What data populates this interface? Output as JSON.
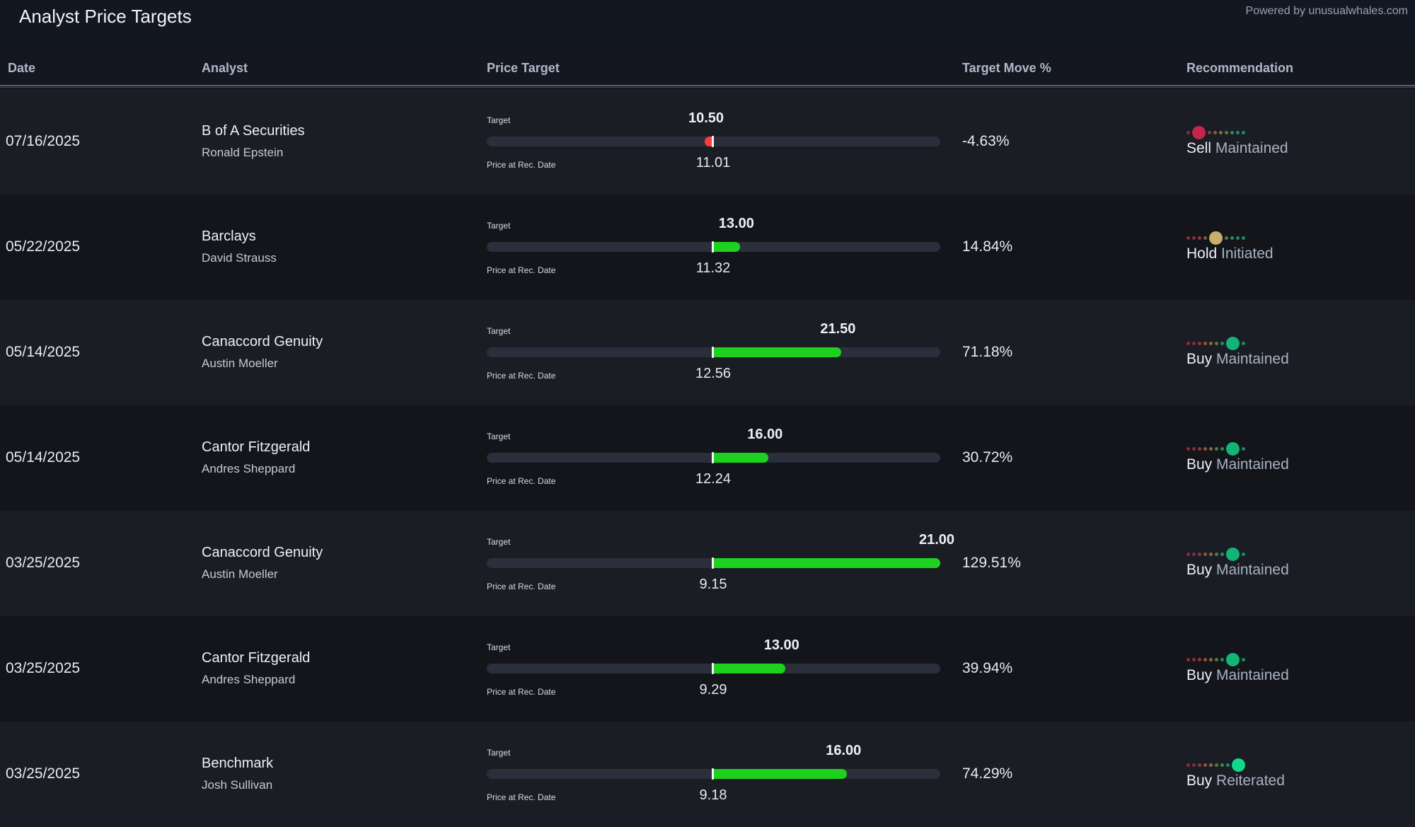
{
  "header": {
    "title": "Analyst Price Targets",
    "powered_by": "Powered by unusualwhales.com"
  },
  "columns": {
    "date": "Date",
    "analyst": "Analyst",
    "price_target": "Price Target",
    "target_move": "Target Move %",
    "recommendation": "Recommendation"
  },
  "labels": {
    "target": "Target",
    "price_at_rec": "Price at Rec. Date"
  },
  "colors": {
    "up_bar": "#1fd11f",
    "down_bar": "#ff3b3b",
    "track": "#2b2e3b",
    "scale_dots": [
      "#8a2a3d",
      "#8a2a3d",
      "#8a3a3a",
      "#8a5a35",
      "#8a6a3a",
      "#5a7a45",
      "#2f8a5a",
      "#1f8a66"
    ],
    "sell_dot": "#c2264a",
    "hold_dot": "#c9ad6a",
    "buy_dot": "#12b575",
    "strong_buy_dot": "#12d98a"
  },
  "rows": [
    {
      "date": "07/16/2025",
      "firm": "B of A Securities",
      "analyst": "Ronald Epstein",
      "target": "10.50",
      "price_at_rec": "11.01",
      "target_move": "-4.63%",
      "move_pct": -4.63,
      "rating": "Sell",
      "action": "Maintained",
      "rating_index": 1,
      "dot_color": "#c2264a"
    },
    {
      "date": "05/22/2025",
      "firm": "Barclays",
      "analyst": "David Strauss",
      "target": "13.00",
      "price_at_rec": "11.32",
      "target_move": "14.84%",
      "move_pct": 14.84,
      "rating": "Hold",
      "action": "Initiated",
      "rating_index": 4,
      "dot_color": "#c9ad6a"
    },
    {
      "date": "05/14/2025",
      "firm": "Canaccord Genuity",
      "analyst": "Austin Moeller",
      "target": "21.50",
      "price_at_rec": "12.56",
      "target_move": "71.18%",
      "move_pct": 71.18,
      "rating": "Buy",
      "action": "Maintained",
      "rating_index": 7,
      "dot_color": "#12b575"
    },
    {
      "date": "05/14/2025",
      "firm": "Cantor Fitzgerald",
      "analyst": "Andres Sheppard",
      "target": "16.00",
      "price_at_rec": "12.24",
      "target_move": "30.72%",
      "move_pct": 30.72,
      "rating": "Buy",
      "action": "Maintained",
      "rating_index": 7,
      "dot_color": "#12b575"
    },
    {
      "date": "03/25/2025",
      "firm": "Canaccord Genuity",
      "analyst": "Austin Moeller",
      "target": "21.00",
      "price_at_rec": "9.15",
      "target_move": "129.51%",
      "move_pct": 129.51,
      "rating": "Buy",
      "action": "Maintained",
      "rating_index": 7,
      "dot_color": "#12b575"
    },
    {
      "date": "03/25/2025",
      "firm": "Cantor Fitzgerald",
      "analyst": "Andres Sheppard",
      "target": "13.00",
      "price_at_rec": "9.29",
      "target_move": "39.94%",
      "move_pct": 39.94,
      "rating": "Buy",
      "action": "Maintained",
      "rating_index": 7,
      "dot_color": "#12b575"
    },
    {
      "date": "03/25/2025",
      "firm": "Benchmark",
      "analyst": "Josh Sullivan",
      "target": "16.00",
      "price_at_rec": "9.18",
      "target_move": "74.29%",
      "move_pct": 74.29,
      "rating": "Buy",
      "action": "Reiterated",
      "rating_index": 8,
      "dot_color": "#12d98a"
    }
  ]
}
